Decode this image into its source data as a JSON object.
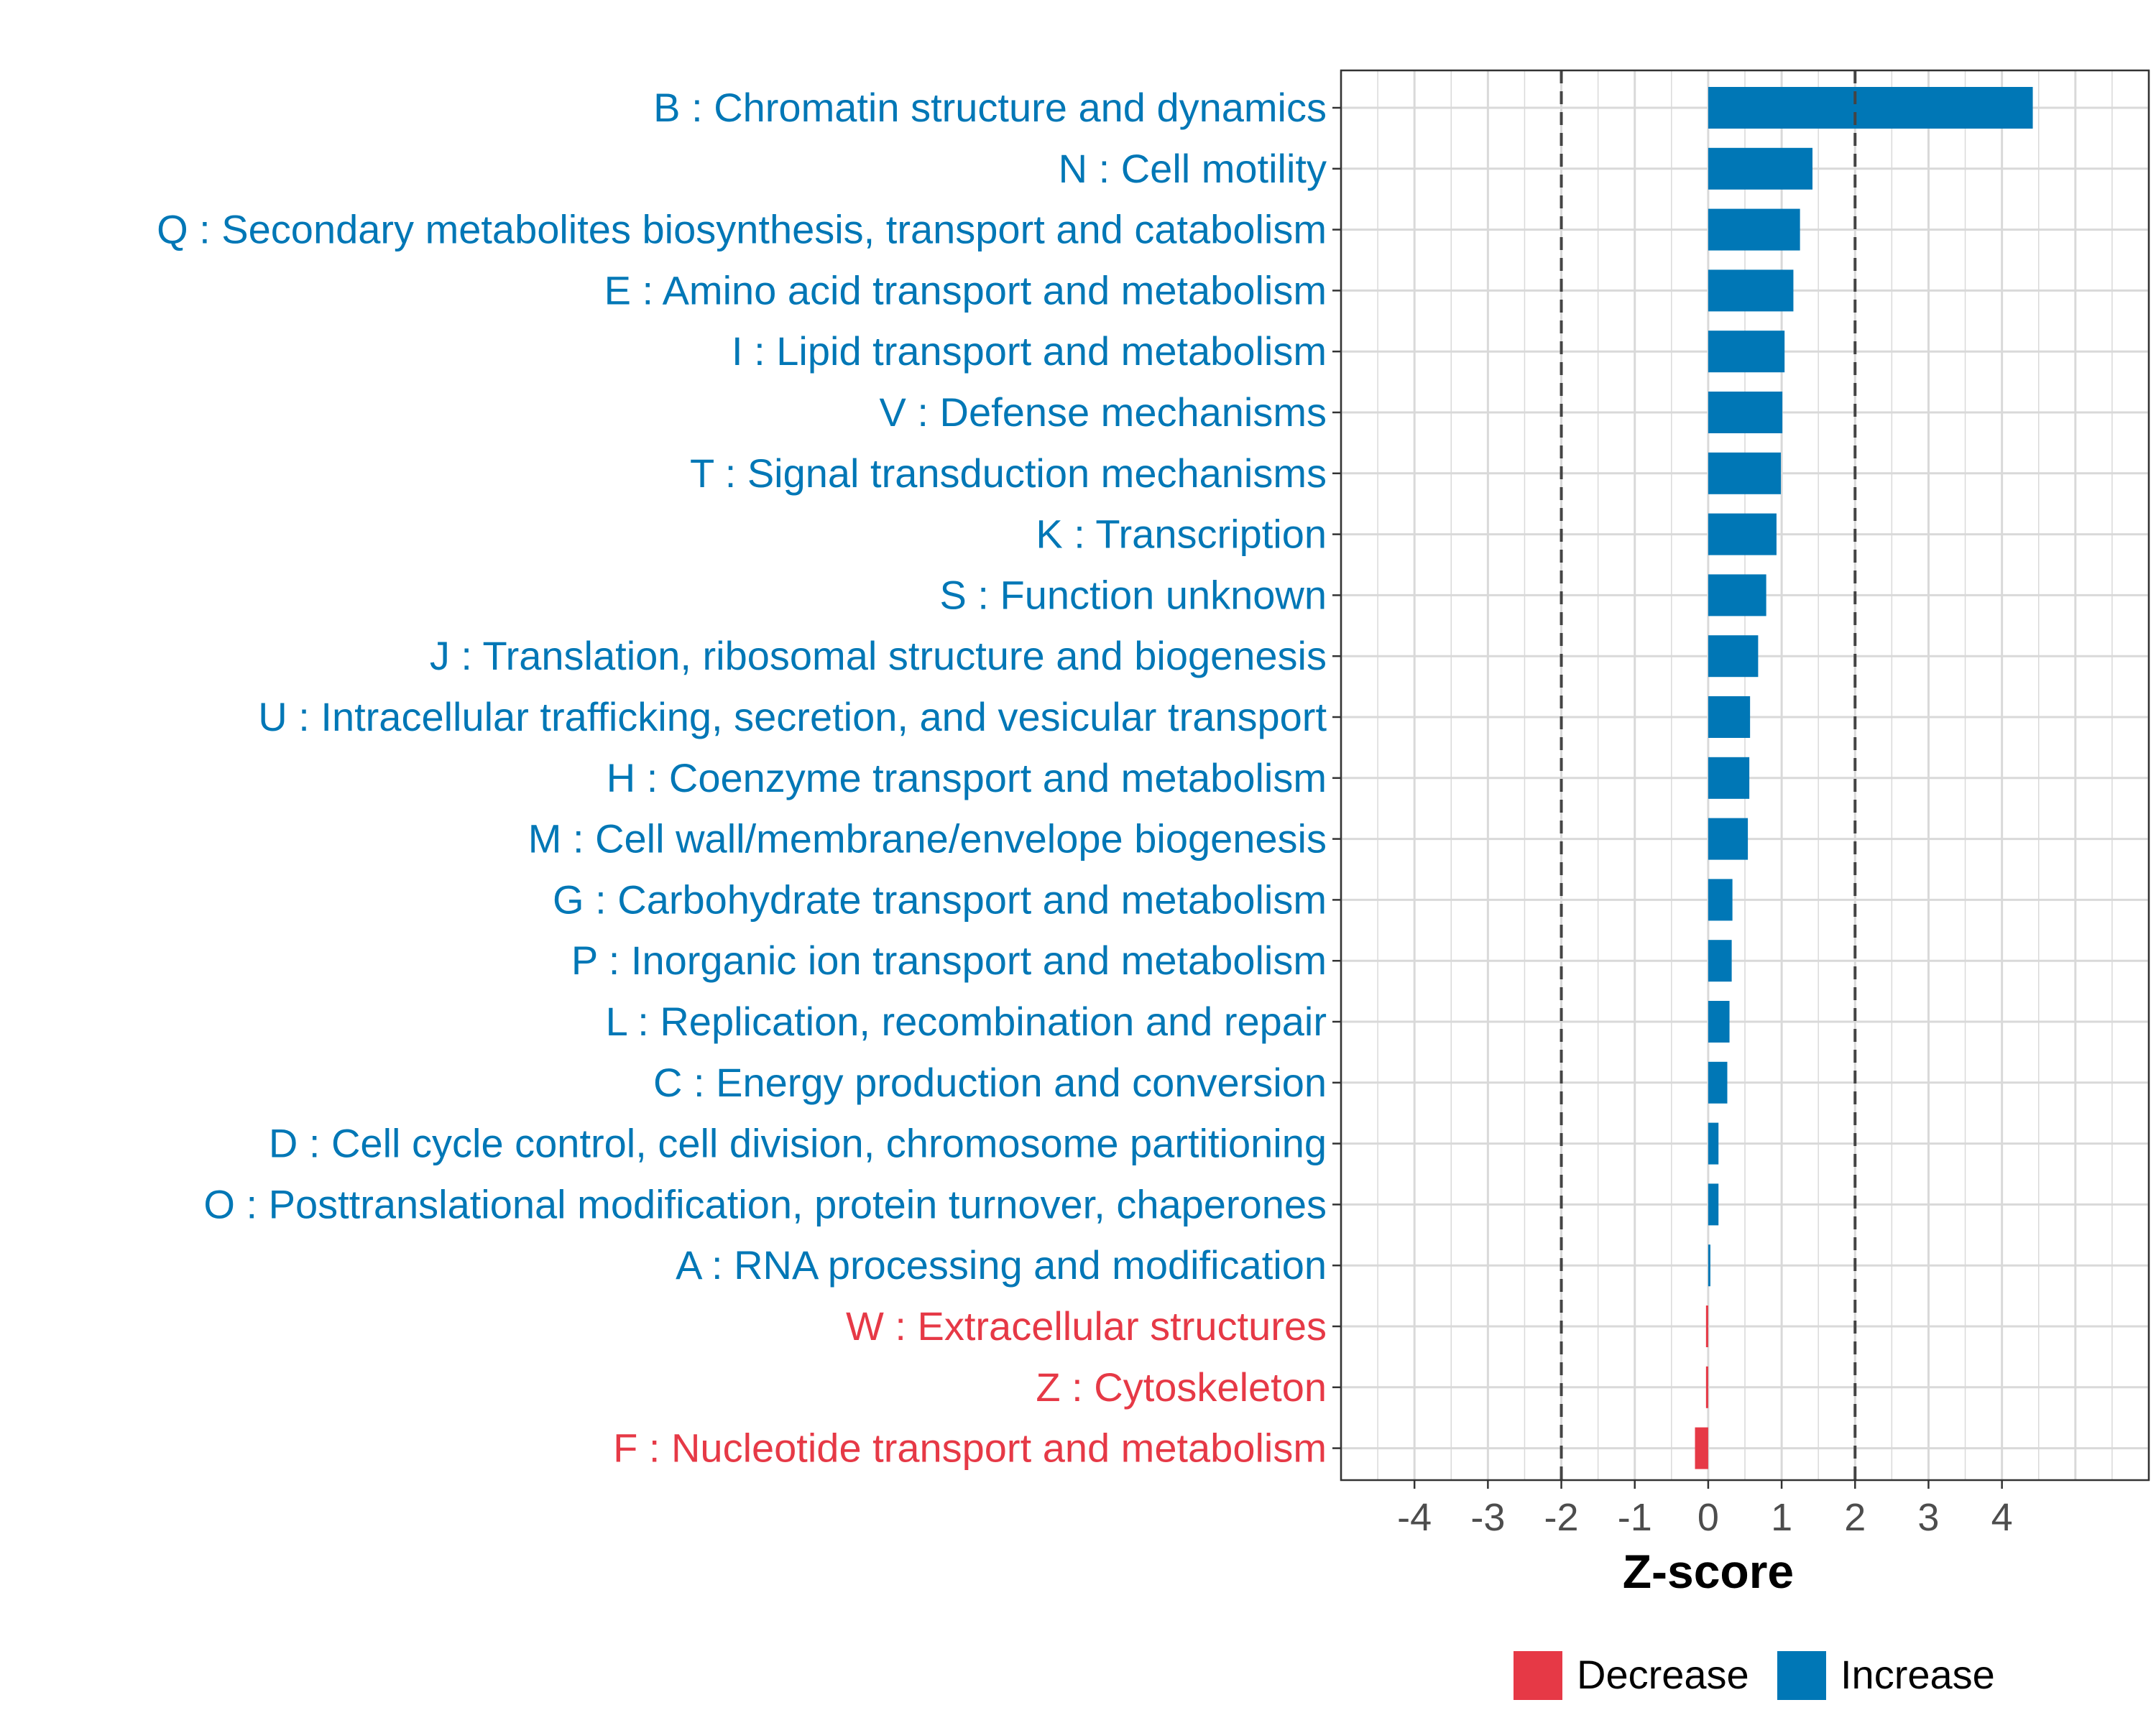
{
  "chart_data": {
    "type": "bar",
    "orientation": "horizontal",
    "xlabel": "Z-score",
    "ylabel": "",
    "xlim": [
      -5,
      6
    ],
    "xticks": [
      -4,
      -3,
      -2,
      -1,
      0,
      1,
      2,
      3,
      4
    ],
    "tick_labels": [
      "-4",
      "-3",
      "-2",
      "-1",
      "0",
      "1",
      "2",
      "3",
      "4"
    ],
    "threshold_lines": [
      -2,
      2
    ],
    "grid": true,
    "colors": {
      "Decrease": "#E63946",
      "Increase": "#0077B6",
      "threshold": "#444444",
      "grid": "#D9D9D9",
      "axis": "#333333",
      "tick_text": "#4D4D4D"
    },
    "legend": {
      "position": "bottom",
      "entries": [
        {
          "label": "Decrease",
          "color": "#E63946"
        },
        {
          "label": "Increase",
          "color": "#0077B6"
        }
      ]
    },
    "categories": [
      "B : Chromatin structure and dynamics",
      "N : Cell motility",
      "Q : Secondary metabolites biosynthesis, transport and catabolism",
      "E : Amino acid transport and metabolism",
      "I : Lipid transport and metabolism",
      "V : Defense mechanisms",
      "T : Signal transduction mechanisms",
      "K : Transcription",
      "S : Function unknown",
      "J : Translation, ribosomal structure and biogenesis",
      "U : Intracellular trafficking, secretion, and vesicular transport",
      "H : Coenzyme transport and metabolism",
      "M : Cell wall/membrane/envelope biogenesis",
      "G : Carbohydrate transport and metabolism",
      "P : Inorganic ion transport and metabolism",
      "L : Replication, recombination and repair",
      "C : Energy production and conversion",
      "D : Cell cycle control, cell division, chromosome partitioning",
      "O : Posttranslational modification, protein turnover, chaperones",
      "A : RNA processing and modification",
      "W : Extracellular structures",
      "Z : Cytoskeleton",
      "F : Nucleotide transport and metabolism"
    ],
    "values": [
      4.42,
      1.42,
      1.25,
      1.16,
      1.04,
      1.01,
      0.99,
      0.93,
      0.79,
      0.68,
      0.57,
      0.56,
      0.54,
      0.33,
      0.32,
      0.29,
      0.26,
      0.14,
      0.14,
      0.01,
      -0.03,
      -0.03,
      -0.18
    ],
    "direction": [
      "Increase",
      "Increase",
      "Increase",
      "Increase",
      "Increase",
      "Increase",
      "Increase",
      "Increase",
      "Increase",
      "Increase",
      "Increase",
      "Increase",
      "Increase",
      "Increase",
      "Increase",
      "Increase",
      "Increase",
      "Increase",
      "Increase",
      "Increase",
      "Decrease",
      "Decrease",
      "Decrease"
    ]
  }
}
